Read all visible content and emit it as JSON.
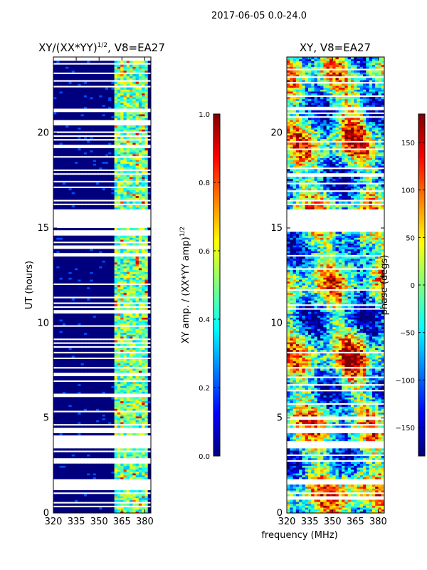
{
  "suptitle": "2017-06-05 0.0-24.0",
  "xlabel_shared": "frequency (MHz)",
  "colors": {
    "jet": [
      "#00007f",
      "#0000ff",
      "#007fff",
      "#00ffff",
      "#7fff7f",
      "#ffff00",
      "#ff7f00",
      "#ff0000",
      "#7f0000"
    ],
    "gap": "#ffffff"
  },
  "chart_data": [
    {
      "type": "heatmap",
      "title": "XY/(XX*YY)",
      "title_sup": "1/2",
      "title_suffix": ", V8=EA27",
      "xlabel": "",
      "ylabel": "UT (hours)",
      "xlim": [
        320,
        384
      ],
      "ylim": [
        0,
        24
      ],
      "xticks": [
        320,
        335,
        350,
        365,
        380
      ],
      "yticks": [
        0,
        5,
        10,
        15,
        20
      ],
      "quantity": "normalized XY amplitude",
      "rfi_free_band_mhz": [
        361,
        382
      ],
      "typical_value_out_of_band": 0.0,
      "typical_value_in_band": 0.45,
      "data_gaps_hours": [
        [
          15.0,
          16.0
        ],
        [
          4.25,
          4.5
        ],
        [
          3.5,
          3.75
        ],
        [
          1.5,
          1.75
        ],
        [
          1.25,
          1.4
        ]
      ],
      "colorbar": {
        "label": "XY amp. / (XX*YY amp)",
        "label_sup": "1/2",
        "range": [
          0.0,
          1.0
        ],
        "ticks": [
          "0.0",
          "0.2",
          "0.4",
          "0.6",
          "0.8",
          "1.0"
        ]
      }
    },
    {
      "type": "heatmap",
      "title": "XY, V8=EA27",
      "xlabel": "frequency (MHz)",
      "ylabel": "",
      "xlim": [
        320,
        384
      ],
      "ylim": [
        0,
        24
      ],
      "xticks": [
        320,
        335,
        350,
        365,
        380
      ],
      "yticks": [
        0,
        5,
        10,
        15,
        20
      ],
      "quantity": "XY phase",
      "data_gaps_hours": [
        [
          15.0,
          16.0
        ],
        [
          4.25,
          4.5
        ],
        [
          3.5,
          3.75
        ],
        [
          1.5,
          1.75
        ]
      ],
      "colorbar": {
        "label": "phase (degs)",
        "range": [
          -180,
          180
        ],
        "ticks": [
          "-150",
          "-100",
          "-50",
          "0",
          "50",
          "100",
          "150"
        ]
      }
    }
  ]
}
